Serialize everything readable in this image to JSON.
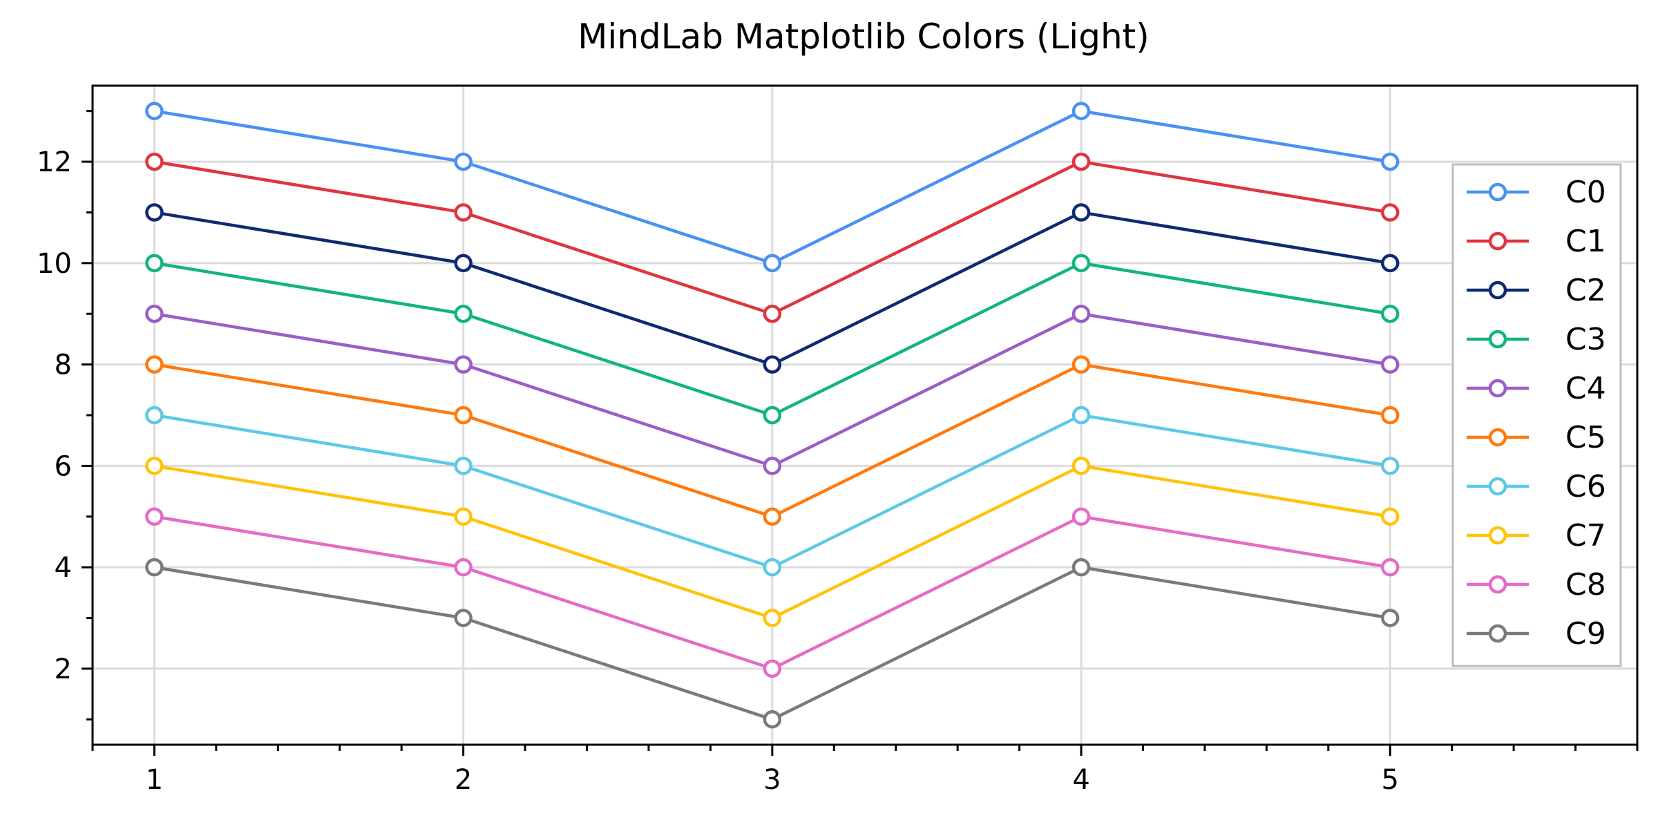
{
  "chart_data": {
    "type": "line",
    "title": "MindLab Matplotlib Colors (Light)",
    "xlabel": "",
    "ylabel": "",
    "x": [
      1,
      2,
      3,
      4,
      5
    ],
    "xlim": [
      0.8,
      5.8
    ],
    "ylim": [
      0.5,
      13.5
    ],
    "x_ticks": [
      1,
      2,
      3,
      4,
      5
    ],
    "y_ticks": [
      2,
      4,
      6,
      8,
      10,
      12
    ],
    "grid": true,
    "legend_position": "right",
    "markers": "hollow-circle",
    "series": [
      {
        "name": "C0",
        "color": "#4a90f5",
        "values": [
          13,
          12,
          10,
          13,
          12
        ]
      },
      {
        "name": "C1",
        "color": "#e0353f",
        "values": [
          12,
          11,
          9,
          12,
          11
        ]
      },
      {
        "name": "C2",
        "color": "#0e2a72",
        "values": [
          11,
          10,
          8,
          11,
          10
        ]
      },
      {
        "name": "C3",
        "color": "#12b57a",
        "values": [
          10,
          9,
          7,
          10,
          9
        ]
      },
      {
        "name": "C4",
        "color": "#9a5ec6",
        "values": [
          9,
          8,
          6,
          9,
          8
        ]
      },
      {
        "name": "C5",
        "color": "#ff7a0e",
        "values": [
          8,
          7,
          5,
          8,
          7
        ]
      },
      {
        "name": "C6",
        "color": "#5ec9e6",
        "values": [
          7,
          6,
          4,
          7,
          6
        ]
      },
      {
        "name": "C7",
        "color": "#ffc30b",
        "values": [
          6,
          5,
          3,
          6,
          5
        ]
      },
      {
        "name": "C8",
        "color": "#e56bc6",
        "values": [
          5,
          4,
          2,
          5,
          4
        ]
      },
      {
        "name": "C9",
        "color": "#7a7a7a",
        "values": [
          4,
          3,
          1,
          4,
          3
        ]
      }
    ]
  }
}
